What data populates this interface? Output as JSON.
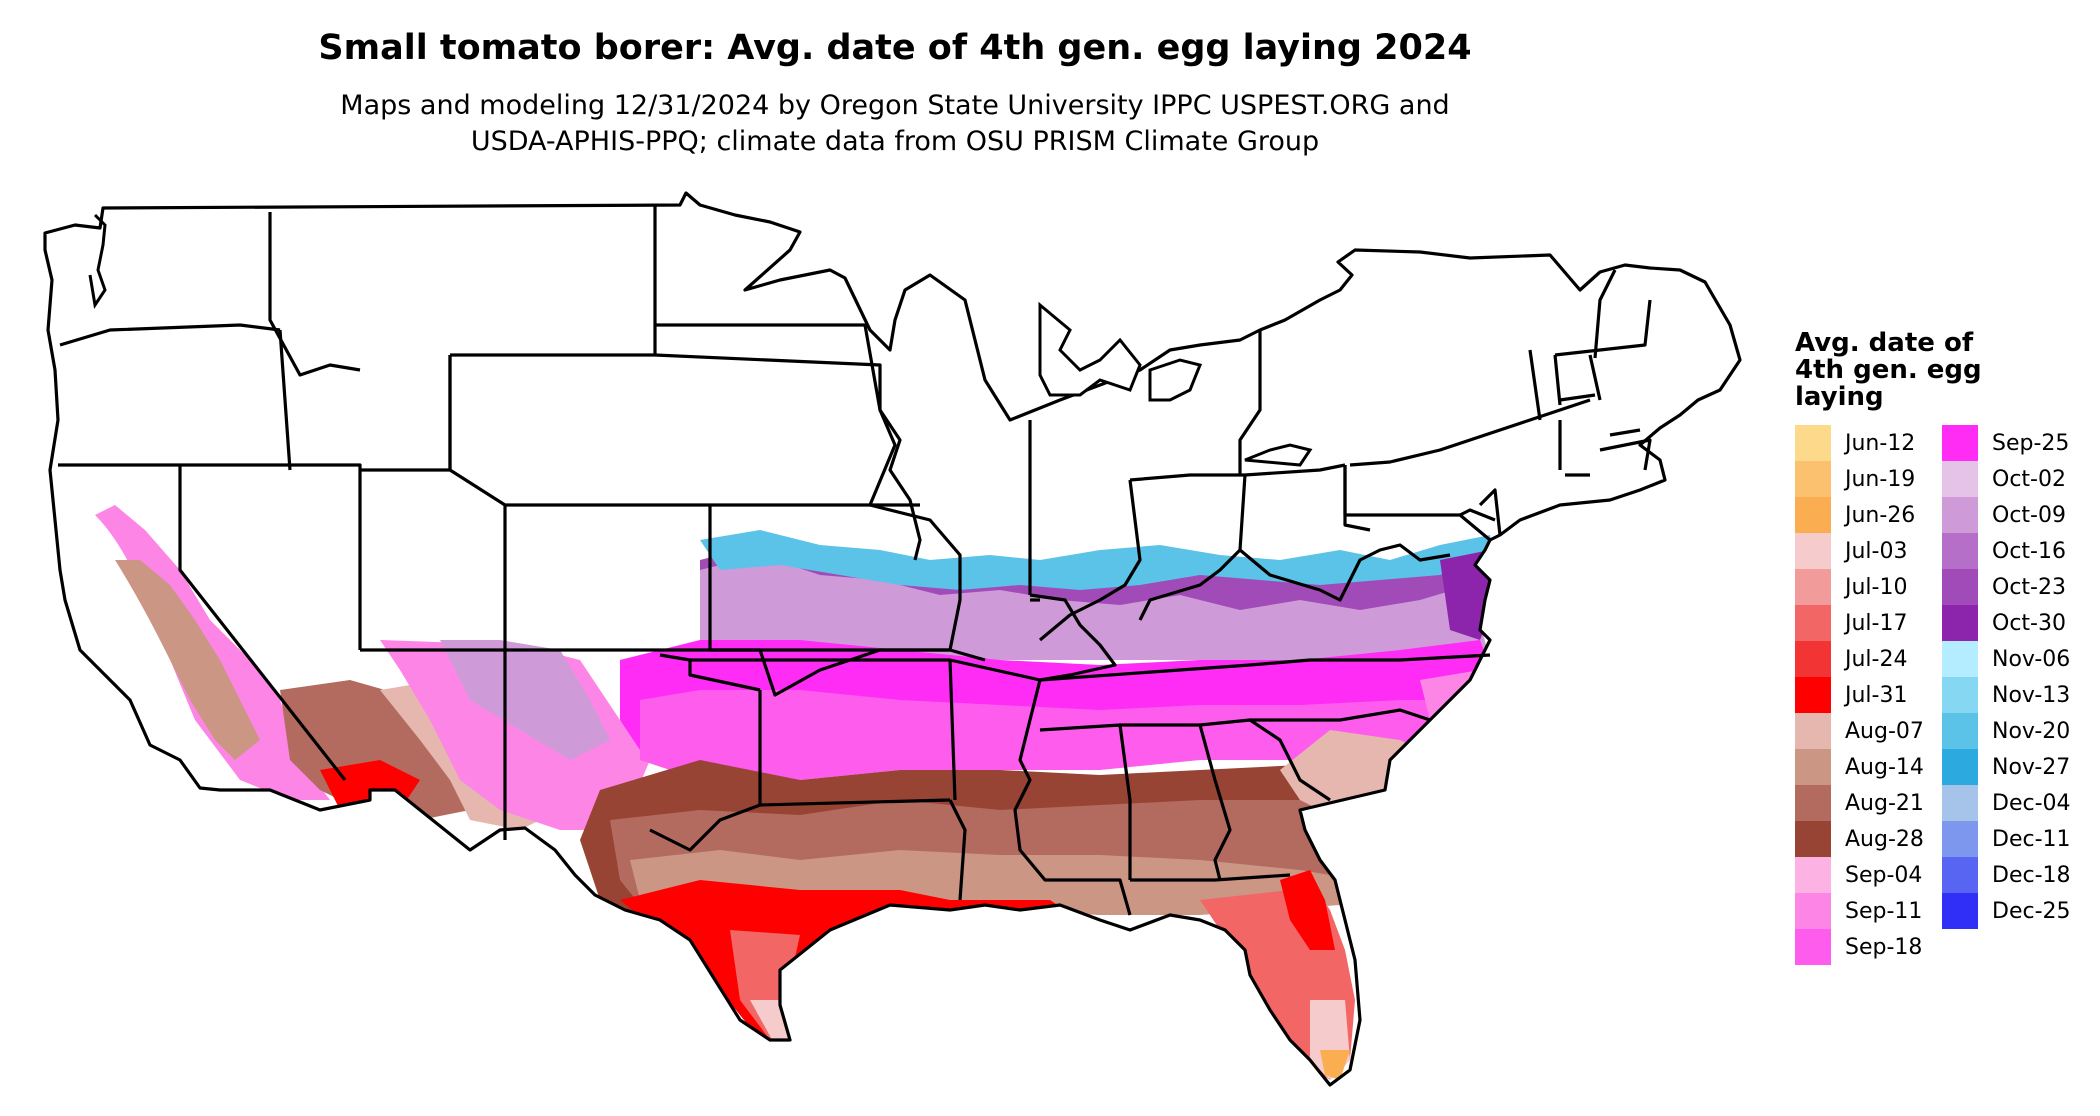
{
  "title": "Small tomato borer: Avg. date of 4th gen. egg laying 2024",
  "subtitle_line1": "Maps and modeling 12/31/2024 by Oregon State University IPPC USPEST.ORG and",
  "subtitle_line2": "USDA-APHIS-PPQ; climate data from OSU PRISM Climate Group",
  "legend": {
    "title": "Avg. date of 4th gen. egg laying",
    "title_lines": [
      "Avg. date of",
      "4th gen. egg",
      "laying"
    ],
    "items": [
      {
        "label": "Jun-12",
        "color": "#fdd98b"
      },
      {
        "label": "Jun-19",
        "color": "#fcc16e"
      },
      {
        "label": "Jun-26",
        "color": "#fbad52"
      },
      {
        "label": "Jul-03",
        "color": "#f5cbcb"
      },
      {
        "label": "Jul-10",
        "color": "#f29b9b"
      },
      {
        "label": "Jul-17",
        "color": "#f26666"
      },
      {
        "label": "Jul-24",
        "color": "#f23434"
      },
      {
        "label": "Jul-31",
        "color": "#ff0000"
      },
      {
        "label": "Aug-07",
        "color": "#e6b7ae"
      },
      {
        "label": "Aug-14",
        "color": "#cc9685"
      },
      {
        "label": "Aug-21",
        "color": "#b26b5e"
      },
      {
        "label": "Aug-28",
        "color": "#974434"
      },
      {
        "label": "Sep-04",
        "color": "#fcb2e2"
      },
      {
        "label": "Sep-11",
        "color": "#fc85e6"
      },
      {
        "label": "Sep-18",
        "color": "#fd5ced"
      },
      {
        "label": "Sep-25",
        "color": "#ff2cf5"
      },
      {
        "label": "Oct-02",
        "color": "#e5c2e8"
      },
      {
        "label": "Oct-09",
        "color": "#cf9ad8"
      },
      {
        "label": "Oct-16",
        "color": "#b66fc8"
      },
      {
        "label": "Oct-23",
        "color": "#a04bb7"
      },
      {
        "label": "Oct-30",
        "color": "#8c24ac"
      },
      {
        "label": "Nov-06",
        "color": "#b3edff"
      },
      {
        "label": "Nov-13",
        "color": "#86d8f2"
      },
      {
        "label": "Nov-20",
        "color": "#5bc2e8"
      },
      {
        "label": "Nov-27",
        "color": "#2ca9de"
      },
      {
        "label": "Dec-04",
        "color": "#a6c4ea"
      },
      {
        "label": "Dec-11",
        "color": "#7e97ee"
      },
      {
        "label": "Dec-18",
        "color": "#5864f2"
      },
      {
        "label": "Dec-25",
        "color": "#2f2ff8"
      }
    ]
  }
}
